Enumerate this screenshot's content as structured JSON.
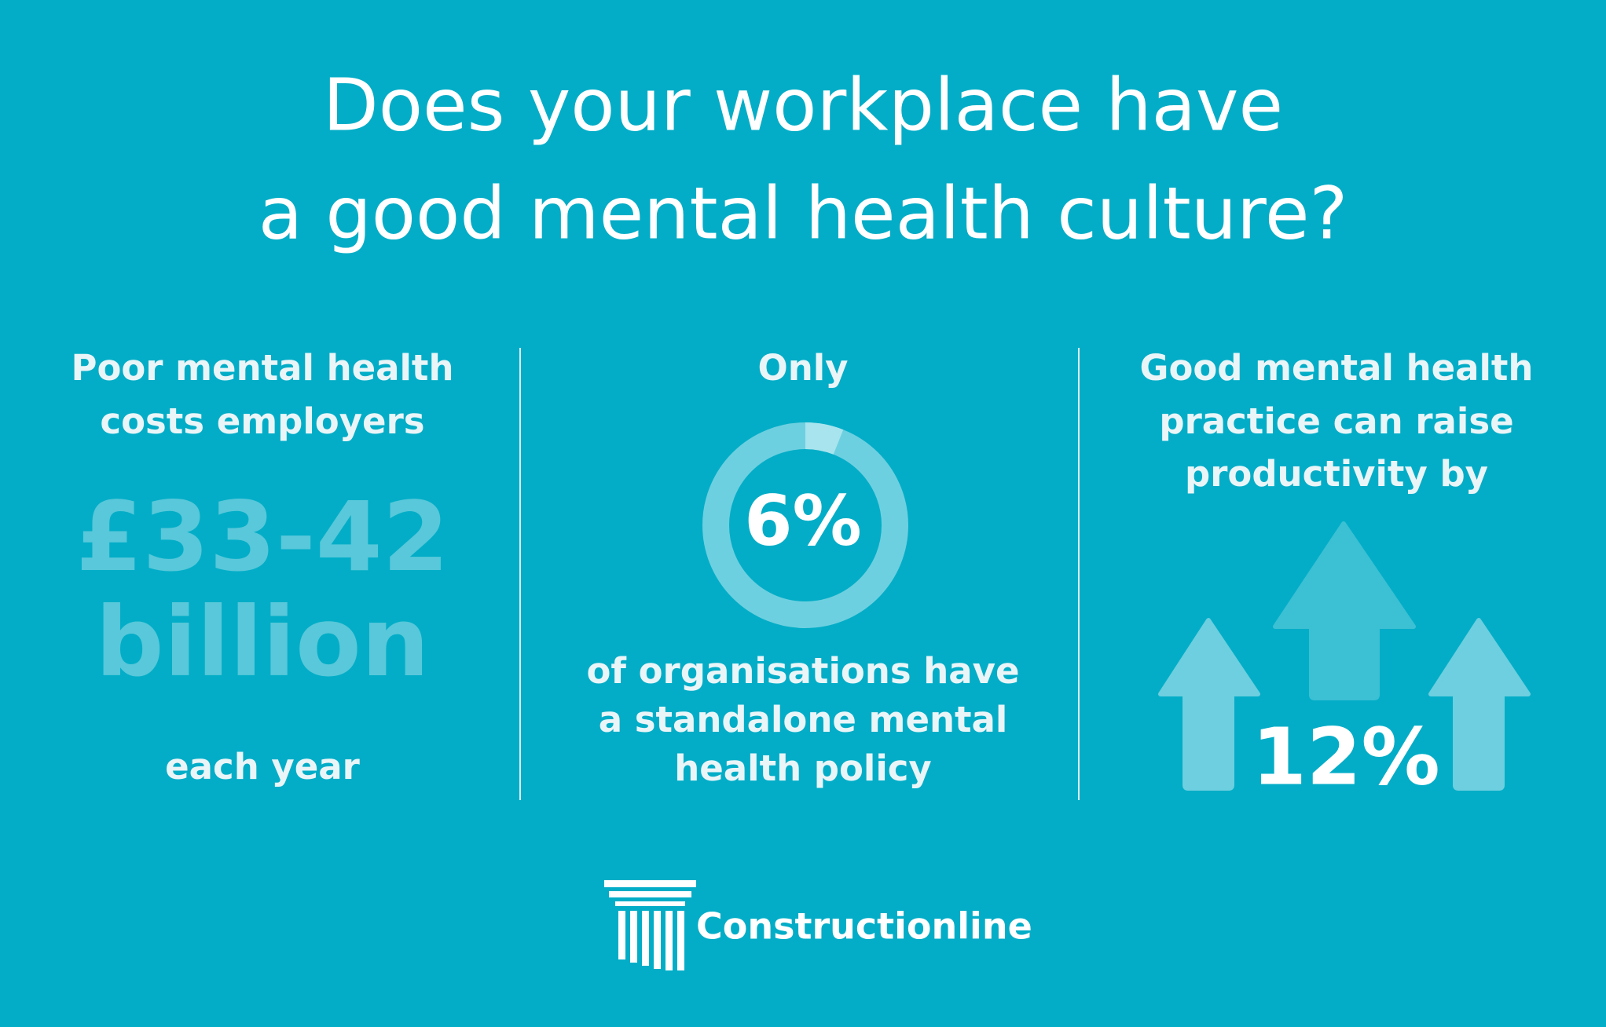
{
  "title": {
    "lines": [
      "Does your workplace have",
      "a good mental health culture?"
    ]
  },
  "panels": [
    {
      "intro": [
        "Poor mental health",
        "costs employers"
      ],
      "figure": [
        "£33-42",
        "billion"
      ],
      "outro": [
        "each year"
      ]
    },
    {
      "intro": [
        "Only"
      ],
      "donut": {
        "label": "6%",
        "percent": 6
      },
      "outro": [
        "of organisations have",
        "a standalone mental",
        "health policy"
      ]
    },
    {
      "intro": [
        "Good mental health",
        "practice can raise",
        "productivity by"
      ],
      "figure": [
        "12%"
      ]
    }
  ],
  "logo": {
    "text": "Constructionline"
  }
}
